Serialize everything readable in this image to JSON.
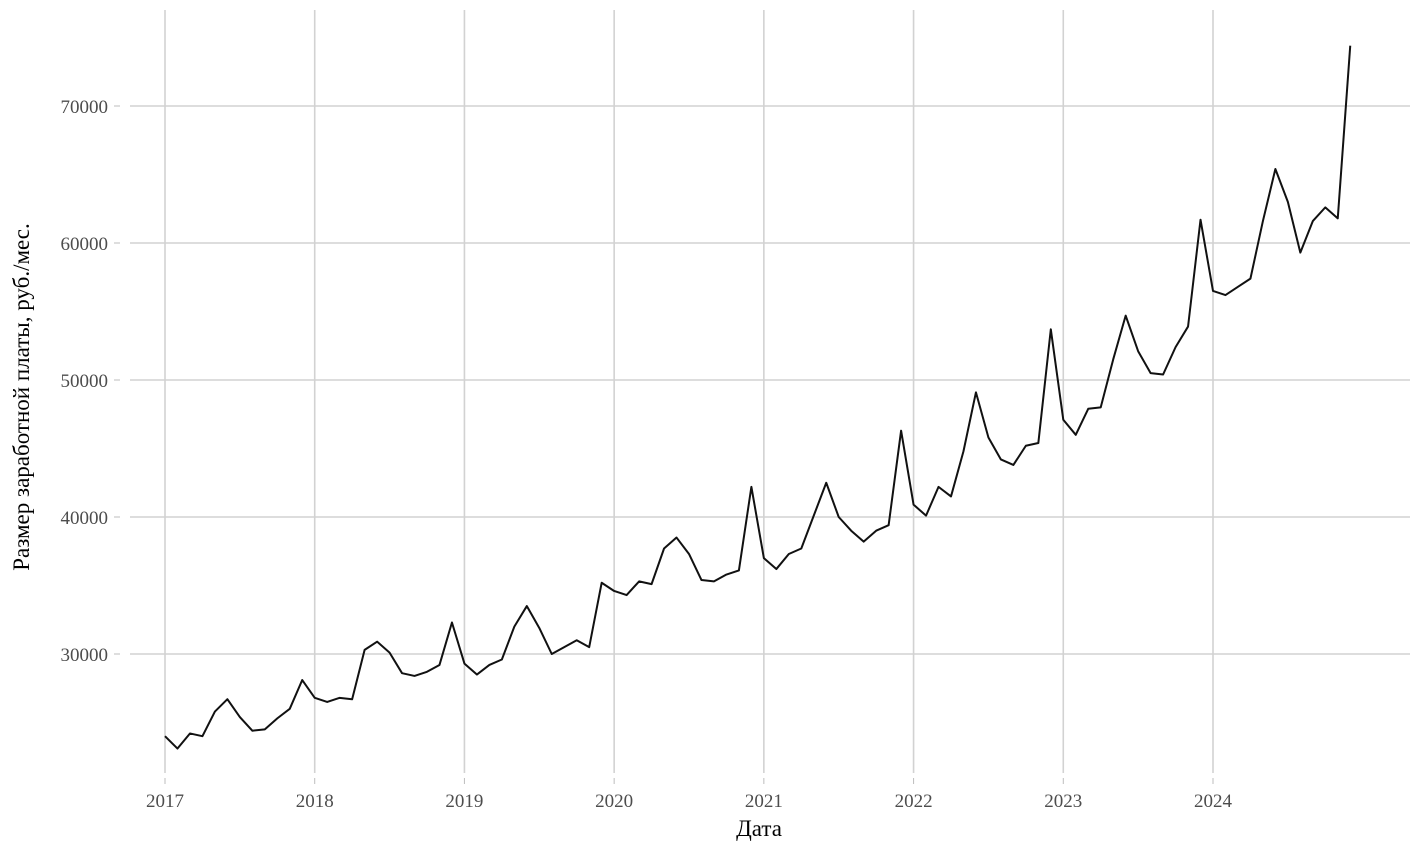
{
  "chart_data": {
    "type": "line",
    "title": "",
    "xlabel": "Дата",
    "ylabel": "Размер заработной платы, руб./мес.",
    "x_ticks": [
      "2017",
      "2018",
      "2019",
      "2020",
      "2021",
      "2022",
      "2023",
      "2024"
    ],
    "y_ticks": [
      "30000",
      "40000",
      "50000",
      "60000",
      "70000"
    ],
    "xlim": [
      "2017-01",
      "2024-12"
    ],
    "ylim": [
      21000,
      77000
    ],
    "grid": true,
    "legend": "none",
    "colors": {
      "line": "#111111",
      "grid": "#d2d2d2",
      "background": "#ffffff"
    },
    "x": [
      "2017-01",
      "2017-02",
      "2017-03",
      "2017-04",
      "2017-05",
      "2017-06",
      "2017-07",
      "2017-08",
      "2017-09",
      "2017-10",
      "2017-11",
      "2017-12",
      "2018-01",
      "2018-02",
      "2018-03",
      "2018-04",
      "2018-05",
      "2018-06",
      "2018-07",
      "2018-08",
      "2018-09",
      "2018-10",
      "2018-11",
      "2018-12",
      "2019-01",
      "2019-02",
      "2019-03",
      "2019-04",
      "2019-05",
      "2019-06",
      "2019-07",
      "2019-08",
      "2019-09",
      "2019-10",
      "2019-11",
      "2019-12",
      "2020-01",
      "2020-02",
      "2020-03",
      "2020-04",
      "2020-05",
      "2020-06",
      "2020-07",
      "2020-08",
      "2020-09",
      "2020-10",
      "2020-11",
      "2020-12",
      "2021-01",
      "2021-02",
      "2021-03",
      "2021-04",
      "2021-05",
      "2021-06",
      "2021-07",
      "2021-08",
      "2021-09",
      "2021-10",
      "2021-11",
      "2021-12",
      "2022-01",
      "2022-02",
      "2022-03",
      "2022-04",
      "2022-05",
      "2022-06",
      "2022-07",
      "2022-08",
      "2022-09",
      "2022-10",
      "2022-11",
      "2022-12",
      "2023-01",
      "2023-02",
      "2023-03",
      "2023-04",
      "2023-05",
      "2023-06",
      "2023-07",
      "2023-08",
      "2023-09",
      "2023-10",
      "2023-11",
      "2023-12",
      "2024-01",
      "2024-02",
      "2024-03",
      "2024-04",
      "2024-05",
      "2024-06",
      "2024-07",
      "2024-08",
      "2024-09",
      "2024-10",
      "2024-11",
      "2024-12"
    ],
    "series": [
      {
        "values": [
          24000,
          23100,
          24200,
          24000,
          25800,
          26700,
          25400,
          24400,
          24500,
          25300,
          26000,
          28100,
          26800,
          26500,
          26800,
          26700,
          30300,
          30900,
          30100,
          28600,
          28400,
          28700,
          29200,
          32300,
          29300,
          28500,
          29200,
          29600,
          32000,
          33500,
          31900,
          30000,
          30500,
          31000,
          30500,
          35200,
          34600,
          34300,
          35300,
          35100,
          37700,
          38500,
          37300,
          35400,
          35300,
          35800,
          36100,
          42200,
          37000,
          36200,
          37300,
          37700,
          40100,
          42500,
          40000,
          39000,
          38200,
          39000,
          39400,
          46300,
          40900,
          40100,
          42200,
          41500,
          44800,
          49100,
          45800,
          44200,
          43800,
          45200,
          45400,
          53700,
          47100,
          46000,
          47900,
          48000,
          51500,
          54700,
          52100,
          50500,
          50400,
          52400,
          53900,
          61700,
          56500,
          56200,
          56800,
          57400,
          61600,
          65400,
          63000,
          59300,
          61600,
          62600,
          61800,
          74400
        ]
      }
    ]
  }
}
